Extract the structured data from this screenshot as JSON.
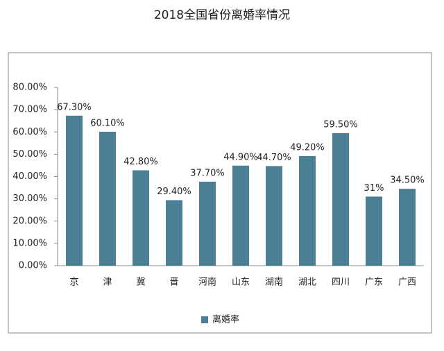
{
  "chart_data": {
    "type": "bar",
    "title": "2018全国省份离婚率情况",
    "categories": [
      "京",
      "津",
      "冀",
      "晋",
      "河南",
      "山东",
      "湖南",
      "湖北",
      "四川",
      "广东",
      "广西"
    ],
    "series": [
      {
        "name": "离婚率",
        "color": "#4a7f96",
        "values": [
          67.3,
          60.1,
          42.8,
          29.4,
          37.7,
          44.9,
          44.7,
          49.2,
          59.5,
          31,
          34.5
        ],
        "value_labels": [
          "67.30%",
          "60.10%",
          "42.80%",
          "29.40%",
          "37.70%",
          "44.90%",
          "44.70%",
          "49.20%",
          "59.50%",
          "31%",
          "34.50%"
        ]
      }
    ],
    "ylim": [
      0,
      80
    ],
    "yticks": [
      {
        "value": 0,
        "label": "0.00%"
      },
      {
        "value": 10,
        "label": "10.00%"
      },
      {
        "value": 20,
        "label": "20.00%"
      },
      {
        "value": 30,
        "label": "30.00%"
      },
      {
        "value": 40,
        "label": "40.00%"
      },
      {
        "value": 50,
        "label": "50.00%"
      },
      {
        "value": 60,
        "label": "60.00%"
      },
      {
        "value": 70,
        "label": "70.00%"
      },
      {
        "value": 80,
        "label": "80.00%"
      }
    ],
    "grid": false,
    "legend": "bottom"
  }
}
